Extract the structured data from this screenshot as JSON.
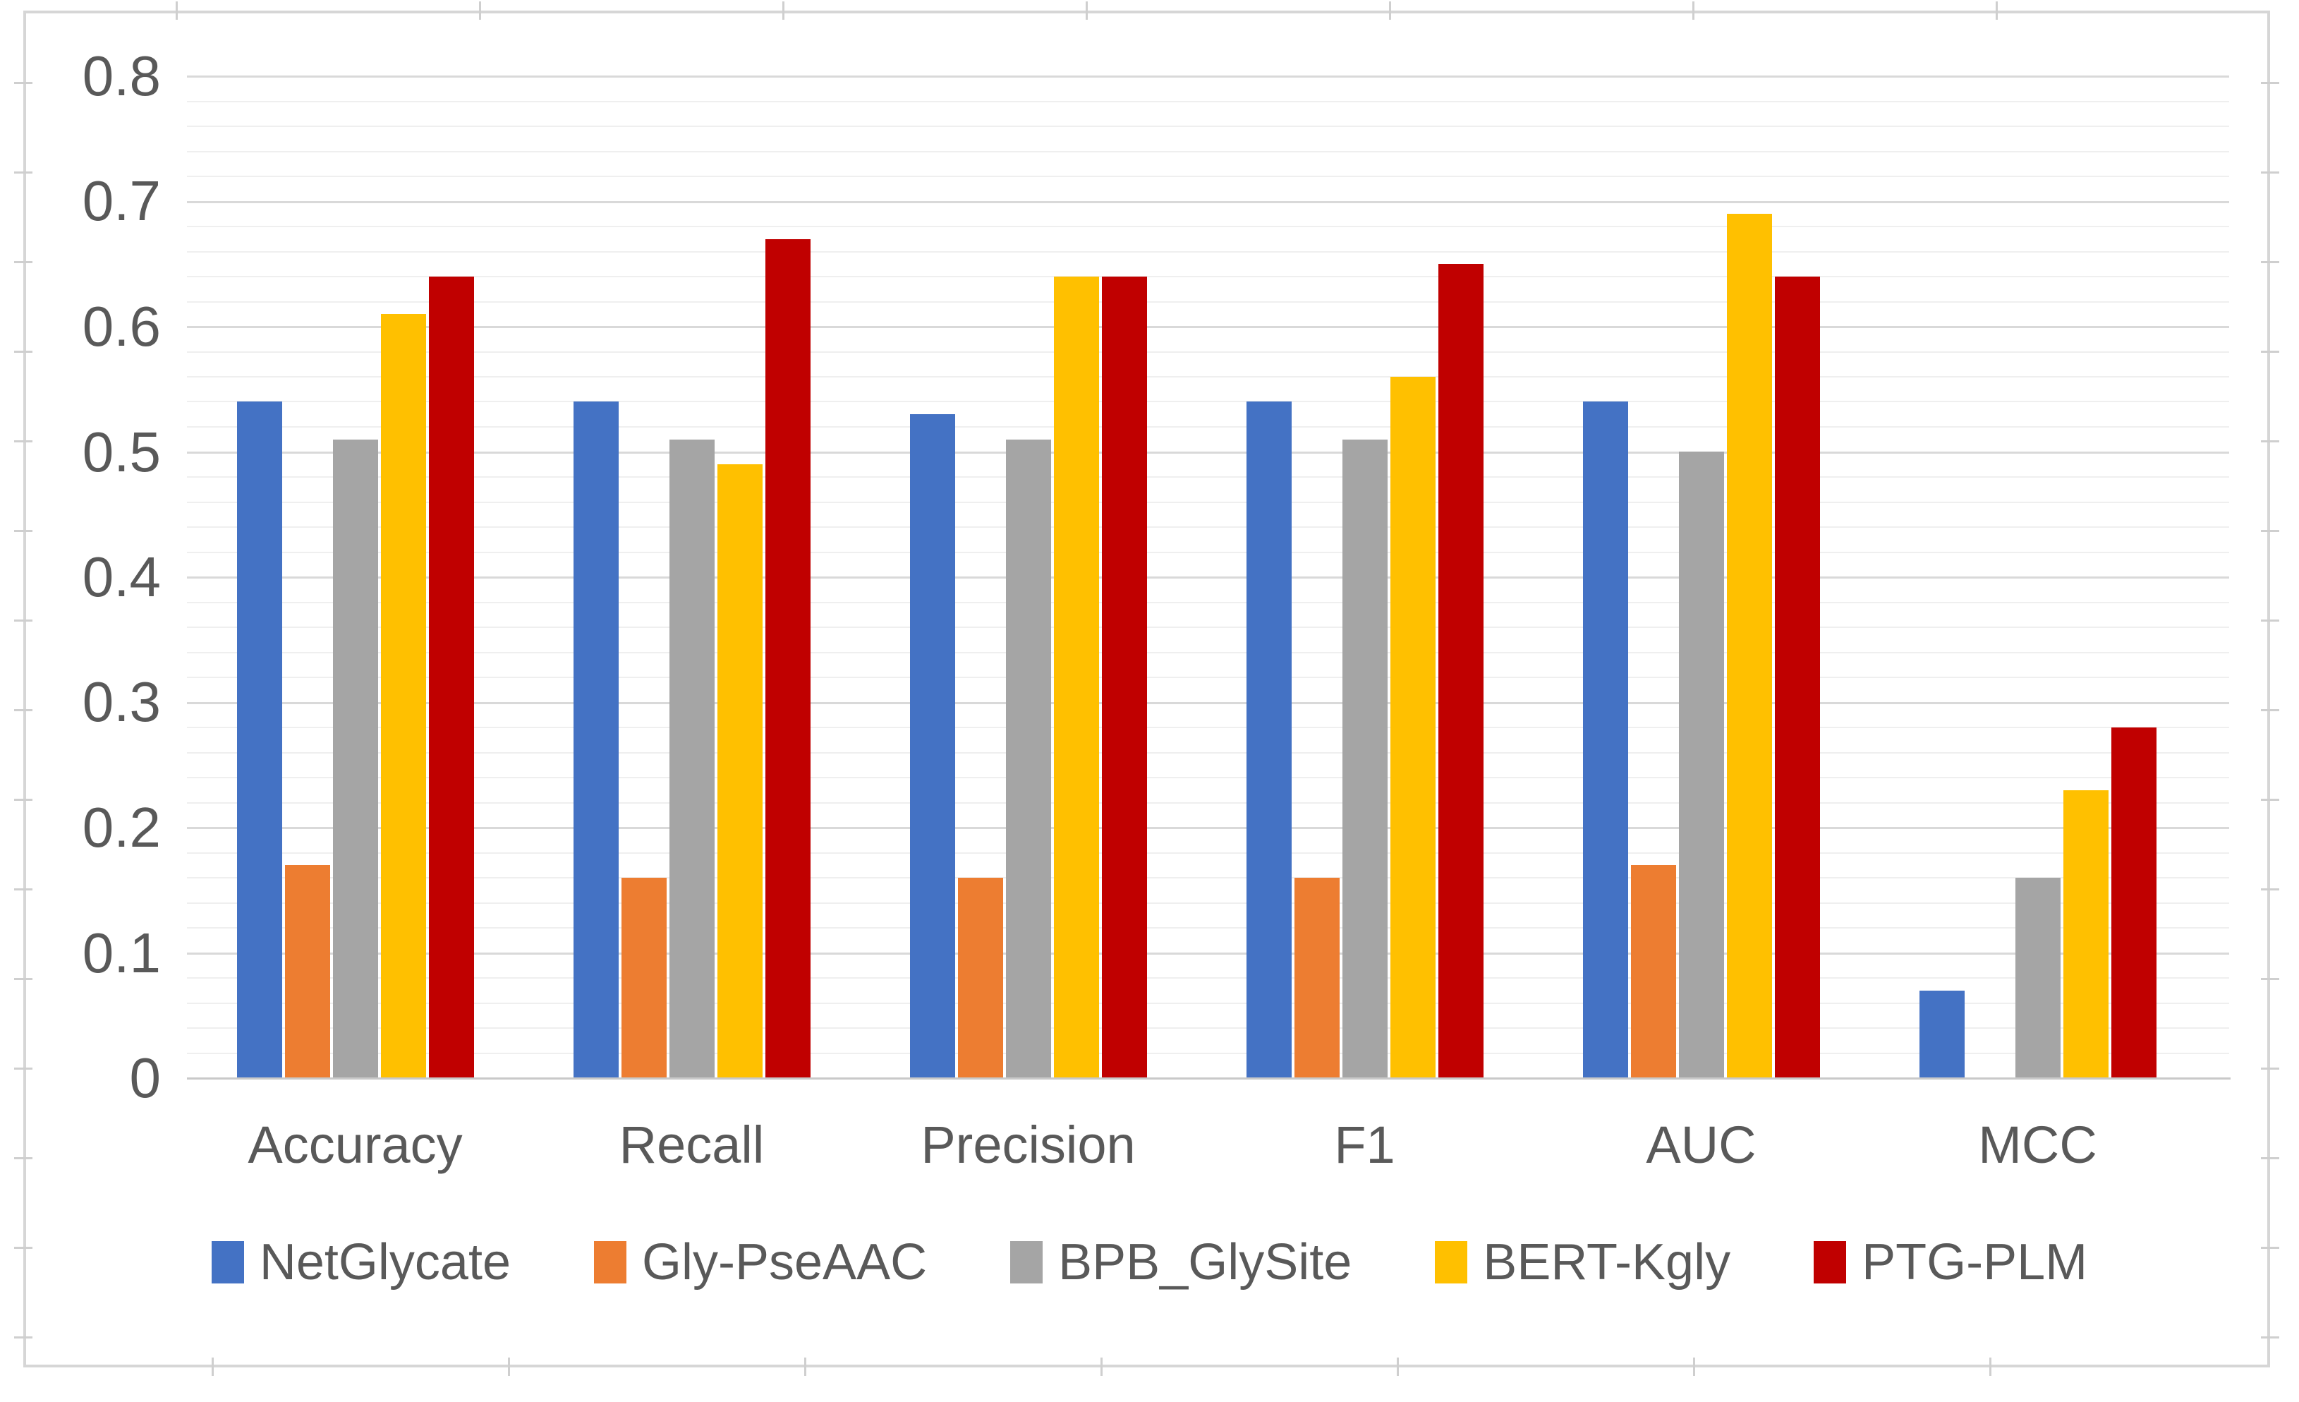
{
  "chart_data": {
    "type": "bar",
    "title": "",
    "categories": [
      "Accuracy",
      "Recall",
      "Precision",
      "F1",
      "AUC",
      "MCC"
    ],
    "series": [
      {
        "name": "NetGlycate",
        "color": "#4472C4",
        "values": [
          0.54,
          0.54,
          0.53,
          0.54,
          0.54,
          0.07
        ]
      },
      {
        "name": "Gly-PseAAC",
        "color": "#ED7D31",
        "values": [
          0.17,
          0.16,
          0.16,
          0.16,
          0.17,
          0
        ]
      },
      {
        "name": "BPB_GlySite",
        "color": "#A5A5A5",
        "values": [
          0.51,
          0.51,
          0.51,
          0.51,
          0.5,
          0.16
        ]
      },
      {
        "name": "BERT-Kgly",
        "color": "#FFC000",
        "values": [
          0.61,
          0.49,
          0.64,
          0.56,
          0.69,
          0.23
        ]
      },
      {
        "name": "PTG-PLM",
        "color": "#C00000",
        "values": [
          0.64,
          0.67,
          0.64,
          0.65,
          0.64,
          0.28
        ]
      }
    ],
    "y_axis": {
      "min": 0,
      "max": 0.8,
      "major_step": 0.1,
      "minor_step": 0.02,
      "tick_labels": [
        "0",
        "0.1",
        "0.2",
        "0.3",
        "0.4",
        "0.5",
        "0.6",
        "0.7",
        "0.8"
      ]
    },
    "xlabel": "",
    "ylabel": "",
    "grid": true,
    "legend_position": "bottom",
    "frame_color": "#D6D6D6",
    "text_color": "#595959"
  }
}
